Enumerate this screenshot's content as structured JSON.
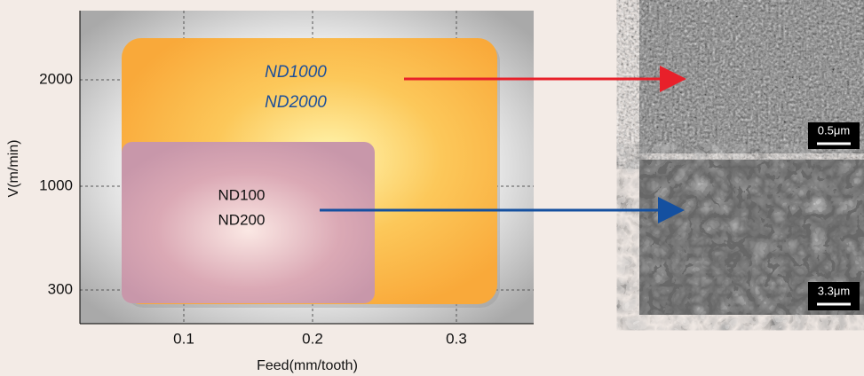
{
  "x_axis": {
    "label": "Feed(mm/tooth)",
    "ticks": [
      "0.1",
      "0.2",
      "0.3"
    ]
  },
  "y_axis": {
    "label": "V(m/min)",
    "ticks": [
      "2000",
      "1000",
      "300"
    ]
  },
  "regions": [
    {
      "labels": [
        "ND1000",
        "ND2000"
      ]
    },
    {
      "labels": [
        "ND100",
        "ND200"
      ]
    }
  ],
  "images": [
    {
      "scale": "0.5μm"
    },
    {
      "scale": "3.3μm"
    }
  ]
}
